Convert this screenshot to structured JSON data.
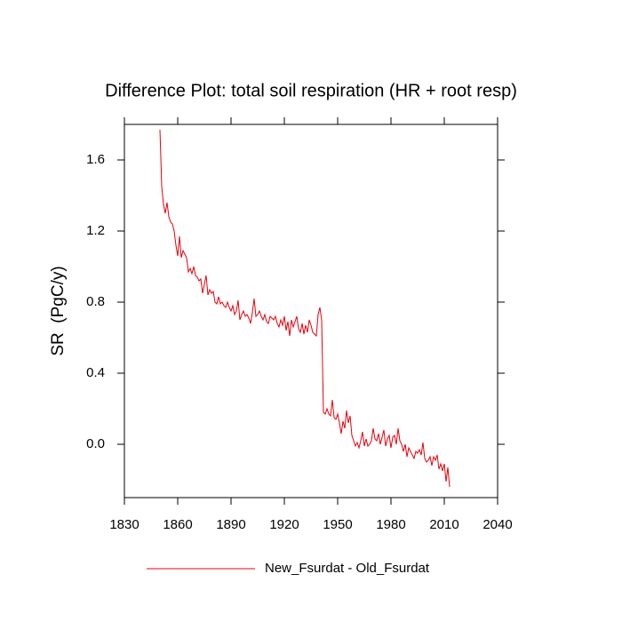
{
  "chart_data": {
    "type": "line",
    "title": "Difference Plot: total soil respiration (HR + root resp)",
    "y_label": "SR  (PgC/y)",
    "xlim": [
      1830,
      2040
    ],
    "xticks": [
      1830,
      1860,
      1890,
      1920,
      1950,
      1980,
      2010,
      2040
    ],
    "ylim": [
      -0.3,
      1.8
    ],
    "yticks": [
      {
        "value": 0,
        "label": "0.0"
      },
      0.4,
      0.8,
      1.2,
      1.6
    ],
    "x": [
      1850,
      1851,
      1852,
      1853,
      1854,
      1855,
      1856,
      1857,
      1858,
      1859,
      1860,
      1861,
      1862,
      1863,
      1864,
      1865,
      1866,
      1867,
      1868,
      1869,
      1870,
      1871,
      1872,
      1873,
      1874,
      1875,
      1876,
      1877,
      1878,
      1879,
      1880,
      1881,
      1882,
      1883,
      1884,
      1885,
      1886,
      1887,
      1888,
      1889,
      1890,
      1891,
      1892,
      1893,
      1894,
      1895,
      1896,
      1897,
      1898,
      1899,
      1900,
      1901,
      1902,
      1903,
      1904,
      1905,
      1906,
      1907,
      1908,
      1909,
      1910,
      1911,
      1912,
      1913,
      1914,
      1915,
      1916,
      1917,
      1918,
      1919,
      1920,
      1921,
      1922,
      1923,
      1924,
      1925,
      1926,
      1927,
      1928,
      1929,
      1930,
      1931,
      1932,
      1933,
      1934,
      1935,
      1936,
      1937,
      1938,
      1939,
      1940,
      1941,
      1942,
      1943,
      1944,
      1945,
      1946,
      1947,
      1948,
      1949,
      1950,
      1951,
      1952,
      1953,
      1954,
      1955,
      1956,
      1957,
      1958,
      1959,
      1960,
      1961,
      1962,
      1963,
      1964,
      1965,
      1966,
      1967,
      1968,
      1969,
      1970,
      1971,
      1972,
      1973,
      1974,
      1975,
      1976,
      1977,
      1978,
      1979,
      1980,
      1981,
      1982,
      1983,
      1984,
      1985,
      1986,
      1987,
      1988,
      1989,
      1990,
      1991,
      1992,
      1993,
      1994,
      1995,
      1996,
      1997,
      1998,
      1999,
      2000,
      2001,
      2002,
      2003,
      2004,
      2005,
      2006,
      2007,
      2008,
      2009,
      2010,
      2011,
      2012,
      2013
    ],
    "series": [
      {
        "name": "New_Fsurdat - Old_Fsurdat",
        "color": "#e8000b",
        "values": [
          1.77,
          1.45,
          1.35,
          1.3,
          1.36,
          1.28,
          1.25,
          1.24,
          1.2,
          1.12,
          1.06,
          1.17,
          1.05,
          1.09,
          1.07,
          1.05,
          0.97,
          0.99,
          0.96,
          1.0,
          0.95,
          0.94,
          0.92,
          0.93,
          0.85,
          0.9,
          0.95,
          0.84,
          0.87,
          0.85,
          0.86,
          0.8,
          0.79,
          0.83,
          0.79,
          0.8,
          0.78,
          0.77,
          0.8,
          0.77,
          0.75,
          0.78,
          0.73,
          0.75,
          0.81,
          0.7,
          0.73,
          0.75,
          0.72,
          0.73,
          0.71,
          0.68,
          0.74,
          0.82,
          0.72,
          0.73,
          0.75,
          0.72,
          0.7,
          0.73,
          0.69,
          0.68,
          0.72,
          0.71,
          0.7,
          0.72,
          0.68,
          0.66,
          0.7,
          0.67,
          0.72,
          0.64,
          0.69,
          0.61,
          0.7,
          0.66,
          0.69,
          0.72,
          0.65,
          0.63,
          0.68,
          0.62,
          0.67,
          0.63,
          0.7,
          0.67,
          0.63,
          0.62,
          0.61,
          0.73,
          0.77,
          0.7,
          0.18,
          0.17,
          0.2,
          0.17,
          0.16,
          0.25,
          0.15,
          0.14,
          0.17,
          0.12,
          0.06,
          0.13,
          0.09,
          0.19,
          0.12,
          0.16,
          0.05,
          0.02,
          -0.01,
          0.01,
          -0.02,
          0.02,
          0.07,
          -0.01,
          0.03,
          -0.01,
          0.0,
          0.02,
          0.09,
          0.03,
          0.02,
          0.06,
          0.0,
          0.04,
          0.08,
          -0.01,
          0.03,
          0.05,
          -0.02,
          0.04,
          0.05,
          0.0,
          0.09,
          0.02,
          0.0,
          -0.04,
          0.0,
          -0.07,
          -0.02,
          -0.04,
          -0.06,
          -0.08,
          -0.04,
          -0.05,
          -0.03,
          -0.06,
          0.01,
          -0.08,
          -0.1,
          -0.09,
          -0.07,
          -0.12,
          -0.07,
          -0.09,
          -0.06,
          -0.14,
          -0.11,
          -0.15,
          -0.11,
          -0.21,
          -0.13,
          -0.24
        ]
      }
    ]
  }
}
